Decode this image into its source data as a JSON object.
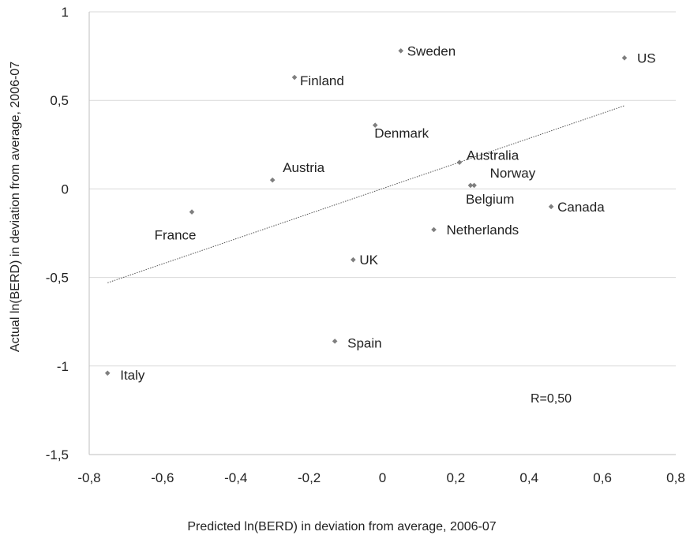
{
  "chart_data": {
    "type": "scatter",
    "xlabel": "Predicted ln(BERD) in deviation from average, 2006-07",
    "ylabel": "Actual ln(BERD) in deviation from average, 2006-07",
    "xlim": [
      -0.8,
      0.8
    ],
    "ylim": [
      -1.5,
      1
    ],
    "x_ticks": [
      -0.8,
      -0.6,
      -0.4,
      -0.2,
      0,
      0.2,
      0.4,
      0.6,
      0.8
    ],
    "y_ticks": [
      -1.5,
      -1,
      -0.5,
      0,
      0.5,
      1
    ],
    "x_tick_labels": [
      "-0,8",
      "-0,6",
      "-0,4",
      "-0,2",
      "0",
      "0,2",
      "0,4",
      "0,6",
      "0,8"
    ],
    "y_tick_labels": [
      "-1,5",
      "-1",
      "-0,5",
      "0",
      "0,5",
      "1"
    ],
    "grid": "horizontal",
    "points": [
      {
        "label": "Sweden",
        "x": 0.05,
        "y": 0.78
      },
      {
        "label": "US",
        "x": 0.66,
        "y": 0.74
      },
      {
        "label": "Finland",
        "x": -0.24,
        "y": 0.63
      },
      {
        "label": "Denmark",
        "x": -0.02,
        "y": 0.36
      },
      {
        "label": "Australia",
        "x": 0.21,
        "y": 0.15
      },
      {
        "label": "Norway",
        "x": 0.25,
        "y": 0.02
      },
      {
        "label": "Belgium",
        "x": 0.24,
        "y": 0.02
      },
      {
        "label": "Austria",
        "x": -0.3,
        "y": 0.05
      },
      {
        "label": "France",
        "x": -0.52,
        "y": -0.13
      },
      {
        "label": "Canada",
        "x": 0.46,
        "y": -0.1
      },
      {
        "label": "Netherlands",
        "x": 0.14,
        "y": -0.23
      },
      {
        "label": "UK",
        "x": -0.08,
        "y": -0.4
      },
      {
        "label": "Spain",
        "x": -0.13,
        "y": -0.86
      },
      {
        "label": "Italy",
        "x": -0.75,
        "y": -1.04
      }
    ],
    "trendline": {
      "style": "dotted",
      "x": [
        -0.75,
        0.66
      ],
      "y": [
        -0.53,
        0.47
      ]
    },
    "marker_color": "#7f7f7f",
    "grid_color": "#d9d9d9",
    "annotation": "R=0,50"
  }
}
